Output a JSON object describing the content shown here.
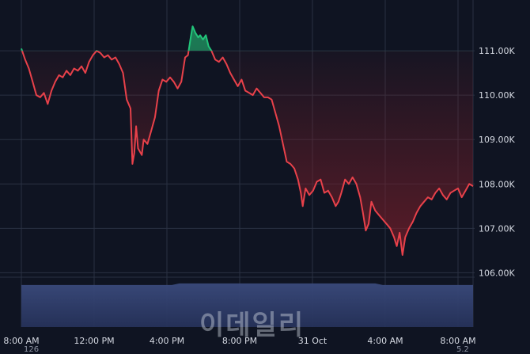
{
  "chart_data": {
    "type": "area",
    "x_ticks": [
      "8:00 AM",
      "12:00 PM",
      "4:00 PM",
      "8:00 PM",
      "31 Oct",
      "4:00 AM",
      "8:00 AM"
    ],
    "y_ticks": [
      "111.00K",
      "110.00K",
      "109.00K",
      "108.00K",
      "107.00K",
      "106.00K"
    ],
    "y_tick_values": [
      111000,
      110000,
      109000,
      108000,
      107000,
      106000
    ],
    "ylim": [
      105900,
      112000
    ],
    "xlim": [
      0,
      24
    ],
    "baseline": 111000,
    "grid": true,
    "series": [
      {
        "values": [
          [
            0.0,
            111050
          ],
          [
            0.2,
            110800
          ],
          [
            0.4,
            110600
          ],
          [
            0.6,
            110300
          ],
          [
            0.8,
            110000
          ],
          [
            1.0,
            109950
          ],
          [
            1.2,
            110050
          ],
          [
            1.4,
            109800
          ],
          [
            1.6,
            110100
          ],
          [
            1.8,
            110300
          ],
          [
            2.0,
            110450
          ],
          [
            2.2,
            110400
          ],
          [
            2.4,
            110550
          ],
          [
            2.6,
            110450
          ],
          [
            2.8,
            110600
          ],
          [
            3.0,
            110550
          ],
          [
            3.2,
            110650
          ],
          [
            3.4,
            110500
          ],
          [
            3.6,
            110750
          ],
          [
            3.8,
            110900
          ],
          [
            4.0,
            111000
          ],
          [
            4.2,
            110950
          ],
          [
            4.4,
            110850
          ],
          [
            4.6,
            110900
          ],
          [
            4.8,
            110800
          ],
          [
            5.0,
            110850
          ],
          [
            5.2,
            110700
          ],
          [
            5.4,
            110500
          ],
          [
            5.6,
            109900
          ],
          [
            5.8,
            109700
          ],
          [
            5.9,
            108450
          ],
          [
            6.0,
            108700
          ],
          [
            6.1,
            109300
          ],
          [
            6.2,
            108800
          ],
          [
            6.4,
            108650
          ],
          [
            6.5,
            109000
          ],
          [
            6.7,
            108900
          ],
          [
            6.9,
            109200
          ],
          [
            7.1,
            109500
          ],
          [
            7.3,
            110100
          ],
          [
            7.5,
            110350
          ],
          [
            7.7,
            110300
          ],
          [
            7.9,
            110400
          ],
          [
            8.1,
            110300
          ],
          [
            8.3,
            110150
          ],
          [
            8.5,
            110300
          ],
          [
            8.7,
            110850
          ],
          [
            8.85,
            110900
          ],
          [
            9.0,
            111300
          ],
          [
            9.1,
            111550
          ],
          [
            9.25,
            111400
          ],
          [
            9.4,
            111300
          ],
          [
            9.5,
            111350
          ],
          [
            9.65,
            111250
          ],
          [
            9.8,
            111350
          ],
          [
            9.95,
            111100
          ],
          [
            10.1,
            111000
          ],
          [
            10.3,
            110800
          ],
          [
            10.5,
            110750
          ],
          [
            10.7,
            110850
          ],
          [
            10.9,
            110700
          ],
          [
            11.1,
            110500
          ],
          [
            11.3,
            110350
          ],
          [
            11.5,
            110200
          ],
          [
            11.7,
            110350
          ],
          [
            11.9,
            110100
          ],
          [
            12.1,
            110050
          ],
          [
            12.3,
            110000
          ],
          [
            12.5,
            110150
          ],
          [
            12.7,
            110050
          ],
          [
            12.9,
            109950
          ],
          [
            13.1,
            109950
          ],
          [
            13.3,
            109900
          ],
          [
            13.5,
            109600
          ],
          [
            13.7,
            109300
          ],
          [
            13.9,
            108900
          ],
          [
            14.1,
            108500
          ],
          [
            14.3,
            108450
          ],
          [
            14.5,
            108350
          ],
          [
            14.7,
            108100
          ],
          [
            14.85,
            107800
          ],
          [
            14.95,
            107500
          ],
          [
            15.1,
            107900
          ],
          [
            15.3,
            107750
          ],
          [
            15.5,
            107850
          ],
          [
            15.7,
            108050
          ],
          [
            15.9,
            108100
          ],
          [
            16.1,
            107800
          ],
          [
            16.3,
            107850
          ],
          [
            16.5,
            107700
          ],
          [
            16.7,
            107500
          ],
          [
            16.85,
            107600
          ],
          [
            17.0,
            107800
          ],
          [
            17.2,
            108100
          ],
          [
            17.4,
            108000
          ],
          [
            17.6,
            108150
          ],
          [
            17.8,
            108000
          ],
          [
            18.0,
            107700
          ],
          [
            18.15,
            107350
          ],
          [
            18.3,
            106950
          ],
          [
            18.45,
            107100
          ],
          [
            18.6,
            107600
          ],
          [
            18.8,
            107400
          ],
          [
            19.0,
            107300
          ],
          [
            19.2,
            107200
          ],
          [
            19.4,
            107100
          ],
          [
            19.6,
            107000
          ],
          [
            19.8,
            106800
          ],
          [
            19.95,
            106600
          ],
          [
            20.1,
            106900
          ],
          [
            20.25,
            106400
          ],
          [
            20.4,
            106800
          ],
          [
            20.6,
            107000
          ],
          [
            20.8,
            107150
          ],
          [
            21.0,
            107350
          ],
          [
            21.2,
            107500
          ],
          [
            21.4,
            107600
          ],
          [
            21.6,
            107700
          ],
          [
            21.8,
            107650
          ],
          [
            22.0,
            107800
          ],
          [
            22.2,
            107900
          ],
          [
            22.4,
            107750
          ],
          [
            22.6,
            107650
          ],
          [
            22.8,
            107800
          ],
          [
            23.0,
            107850
          ],
          [
            23.2,
            107900
          ],
          [
            23.4,
            107700
          ],
          [
            23.6,
            107850
          ],
          [
            23.8,
            108000
          ],
          [
            24.0,
            107950
          ]
        ]
      }
    ],
    "volume_level": 0.95
  },
  "colors": {
    "background": "#0f1422",
    "grid": "#2a3142",
    "line_below": "#e8414a",
    "line_above": "#22c47a",
    "fill_below": "#7a1f2a",
    "fill_above": "#1f8f5f",
    "volume": "#3a4a7c"
  },
  "watermark": "이데일리",
  "footer": {
    "left": "126",
    "right": "5.2"
  }
}
